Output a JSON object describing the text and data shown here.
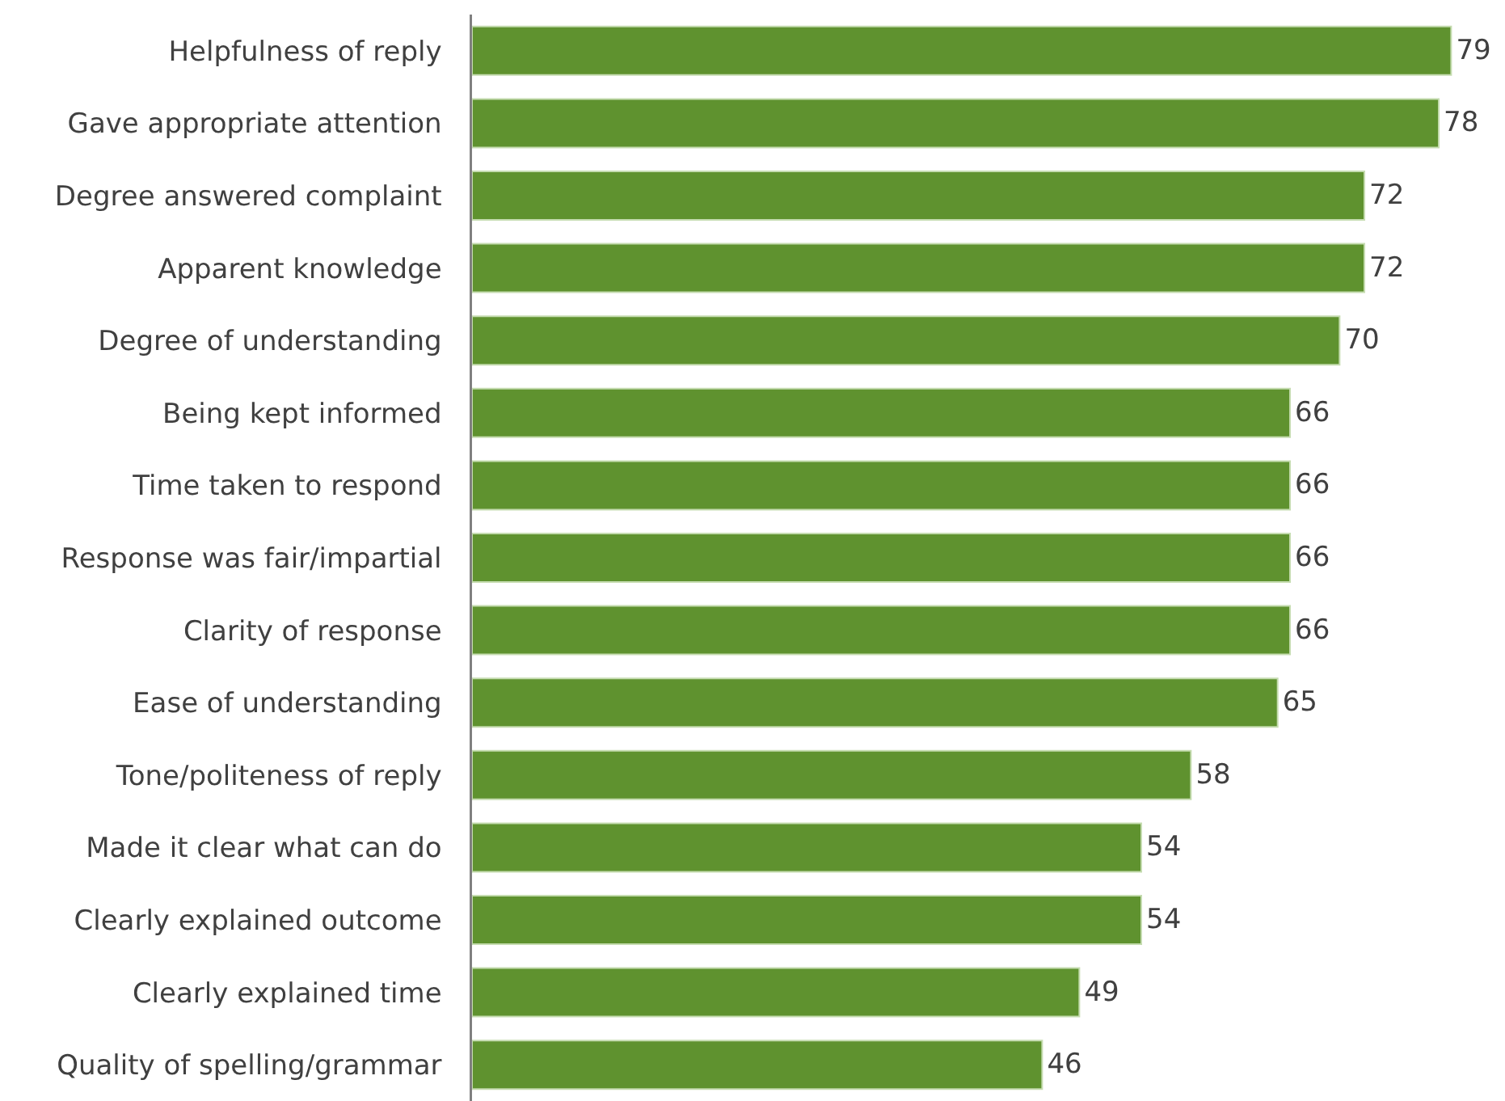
{
  "chart_data": {
    "type": "bar",
    "orientation": "horizontal",
    "categories": [
      "Helpfulness of reply",
      "Gave appropriate attention",
      "Degree answered complaint",
      "Apparent knowledge",
      "Degree of understanding",
      "Being kept informed",
      "Time taken to respond",
      "Response was fair/impartial",
      "Clarity of response",
      "Ease of understanding",
      "Tone/politeness of reply",
      "Made it clear what can do",
      "Clearly explained outcome",
      "Clearly explained time",
      "Quality of spelling/grammar"
    ],
    "values": [
      79,
      78,
      72,
      72,
      70,
      66,
      66,
      66,
      66,
      65,
      58,
      54,
      54,
      49,
      46
    ],
    "color": "#5f922f",
    "data_labels": true
  }
}
